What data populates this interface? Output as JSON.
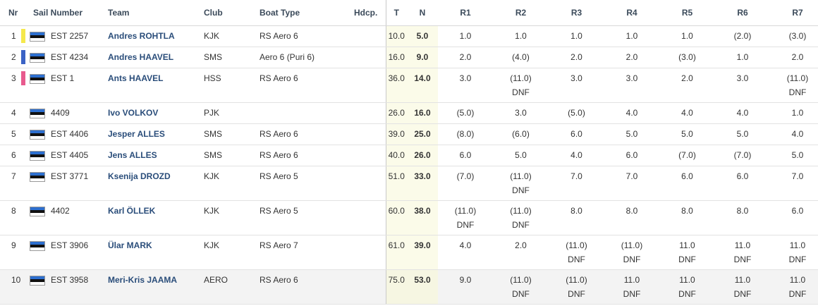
{
  "headers": {
    "nr": "Nr",
    "sail": "Sail Number",
    "team": "Team",
    "club": "Club",
    "boat": "Boat Type",
    "hdcp": "Hdcp.",
    "t": "T",
    "n": "N",
    "r1": "R1",
    "r2": "R2",
    "r3": "R3",
    "r4": "R4",
    "r5": "R5",
    "r6": "R6",
    "r7": "R7"
  },
  "rows": [
    {
      "nr": "1",
      "bar": "#f5e84c",
      "sail": "EST 2257",
      "team": "Andres ROHTLA",
      "club": "KJK",
      "boat": "RS Aero 6",
      "hdcp": "",
      "t": "10.0",
      "n": "5.0",
      "r": [
        [
          "1.0",
          ""
        ],
        [
          "1.0",
          ""
        ],
        [
          "1.0",
          ""
        ],
        [
          "1.0",
          ""
        ],
        [
          "1.0",
          ""
        ],
        [
          "(2.0)",
          ""
        ],
        [
          "(3.0)",
          ""
        ]
      ]
    },
    {
      "nr": "2",
      "bar": "#3b63c5",
      "sail": "EST 4234",
      "team": "Andres HAAVEL",
      "club": "SMS",
      "boat": "Aero 6 (Puri 6)",
      "hdcp": "",
      "t": "16.0",
      "n": "9.0",
      "r": [
        [
          "2.0",
          ""
        ],
        [
          "(4.0)",
          ""
        ],
        [
          "2.0",
          ""
        ],
        [
          "2.0",
          ""
        ],
        [
          "(3.0)",
          ""
        ],
        [
          "1.0",
          ""
        ],
        [
          "2.0",
          ""
        ]
      ]
    },
    {
      "nr": "3",
      "bar": "#e85a8e",
      "sail": "EST 1",
      "team": "Ants HAAVEL",
      "club": "HSS",
      "boat": "RS Aero 6",
      "hdcp": "",
      "t": "36.0",
      "n": "14.0",
      "r": [
        [
          "3.0",
          ""
        ],
        [
          "(11.0)",
          "DNF"
        ],
        [
          "3.0",
          ""
        ],
        [
          "3.0",
          ""
        ],
        [
          "2.0",
          ""
        ],
        [
          "3.0",
          ""
        ],
        [
          "(11.0)",
          "DNF"
        ]
      ]
    },
    {
      "nr": "4",
      "bar": "",
      "sail": "4409",
      "team": "Ivo VOLKOV",
      "club": "PJK",
      "boat": "",
      "hdcp": "",
      "t": "26.0",
      "n": "16.0",
      "r": [
        [
          "(5.0)",
          ""
        ],
        [
          "3.0",
          ""
        ],
        [
          "(5.0)",
          ""
        ],
        [
          "4.0",
          ""
        ],
        [
          "4.0",
          ""
        ],
        [
          "4.0",
          ""
        ],
        [
          "1.0",
          ""
        ]
      ]
    },
    {
      "nr": "5",
      "bar": "",
      "sail": "EST 4406",
      "team": "Jesper ALLES",
      "club": "SMS",
      "boat": "RS Aero 6",
      "hdcp": "",
      "t": "39.0",
      "n": "25.0",
      "r": [
        [
          "(8.0)",
          ""
        ],
        [
          "(6.0)",
          ""
        ],
        [
          "6.0",
          ""
        ],
        [
          "5.0",
          ""
        ],
        [
          "5.0",
          ""
        ],
        [
          "5.0",
          ""
        ],
        [
          "4.0",
          ""
        ]
      ]
    },
    {
      "nr": "6",
      "bar": "",
      "sail": "EST 4405",
      "team": "Jens ALLES",
      "club": "SMS",
      "boat": "RS Aero 6",
      "hdcp": "",
      "t": "40.0",
      "n": "26.0",
      "r": [
        [
          "6.0",
          ""
        ],
        [
          "5.0",
          ""
        ],
        [
          "4.0",
          ""
        ],
        [
          "6.0",
          ""
        ],
        [
          "(7.0)",
          ""
        ],
        [
          "(7.0)",
          ""
        ],
        [
          "5.0",
          ""
        ]
      ]
    },
    {
      "nr": "7",
      "bar": "",
      "sail": "EST 3771",
      "team": "Ksenija DROZD",
      "club": "KJK",
      "boat": "RS Aero 5",
      "hdcp": "",
      "t": "51.0",
      "n": "33.0",
      "r": [
        [
          "(7.0)",
          ""
        ],
        [
          "(11.0)",
          "DNF"
        ],
        [
          "7.0",
          ""
        ],
        [
          "7.0",
          ""
        ],
        [
          "6.0",
          ""
        ],
        [
          "6.0",
          ""
        ],
        [
          "7.0",
          ""
        ]
      ]
    },
    {
      "nr": "8",
      "bar": "",
      "sail": "4402",
      "team": "Karl ÖLLEK",
      "club": "KJK",
      "boat": "RS Aero 5",
      "hdcp": "",
      "t": "60.0",
      "n": "38.0",
      "r": [
        [
          "(11.0)",
          "DNF"
        ],
        [
          "(11.0)",
          "DNF"
        ],
        [
          "8.0",
          ""
        ],
        [
          "8.0",
          ""
        ],
        [
          "8.0",
          ""
        ],
        [
          "8.0",
          ""
        ],
        [
          "6.0",
          ""
        ]
      ]
    },
    {
      "nr": "9",
      "bar": "",
      "sail": "EST 3906",
      "team": "Ülar MARK",
      "club": "KJK",
      "boat": "RS Aero 7",
      "hdcp": "",
      "t": "61.0",
      "n": "39.0",
      "r": [
        [
          "4.0",
          ""
        ],
        [
          "2.0",
          ""
        ],
        [
          "(11.0)",
          "DNF"
        ],
        [
          "(11.0)",
          "DNF"
        ],
        [
          "11.0",
          "DNF"
        ],
        [
          "11.0",
          "DNF"
        ],
        [
          "11.0",
          "DNF"
        ]
      ]
    },
    {
      "nr": "10",
      "bar": "",
      "sail": "EST 3958",
      "team": "Meri-Kris JAAMA",
      "club": "AERO",
      "boat": "RS Aero 6",
      "hdcp": "",
      "t": "75.0",
      "n": "53.0",
      "r": [
        [
          "9.0",
          ""
        ],
        [
          "(11.0)",
          "DNF"
        ],
        [
          "(11.0)",
          "DNF"
        ],
        [
          "11.0",
          "DNF"
        ],
        [
          "11.0",
          "DNF"
        ],
        [
          "11.0",
          "DNF"
        ],
        [
          "11.0",
          "DNF"
        ]
      ]
    }
  ]
}
